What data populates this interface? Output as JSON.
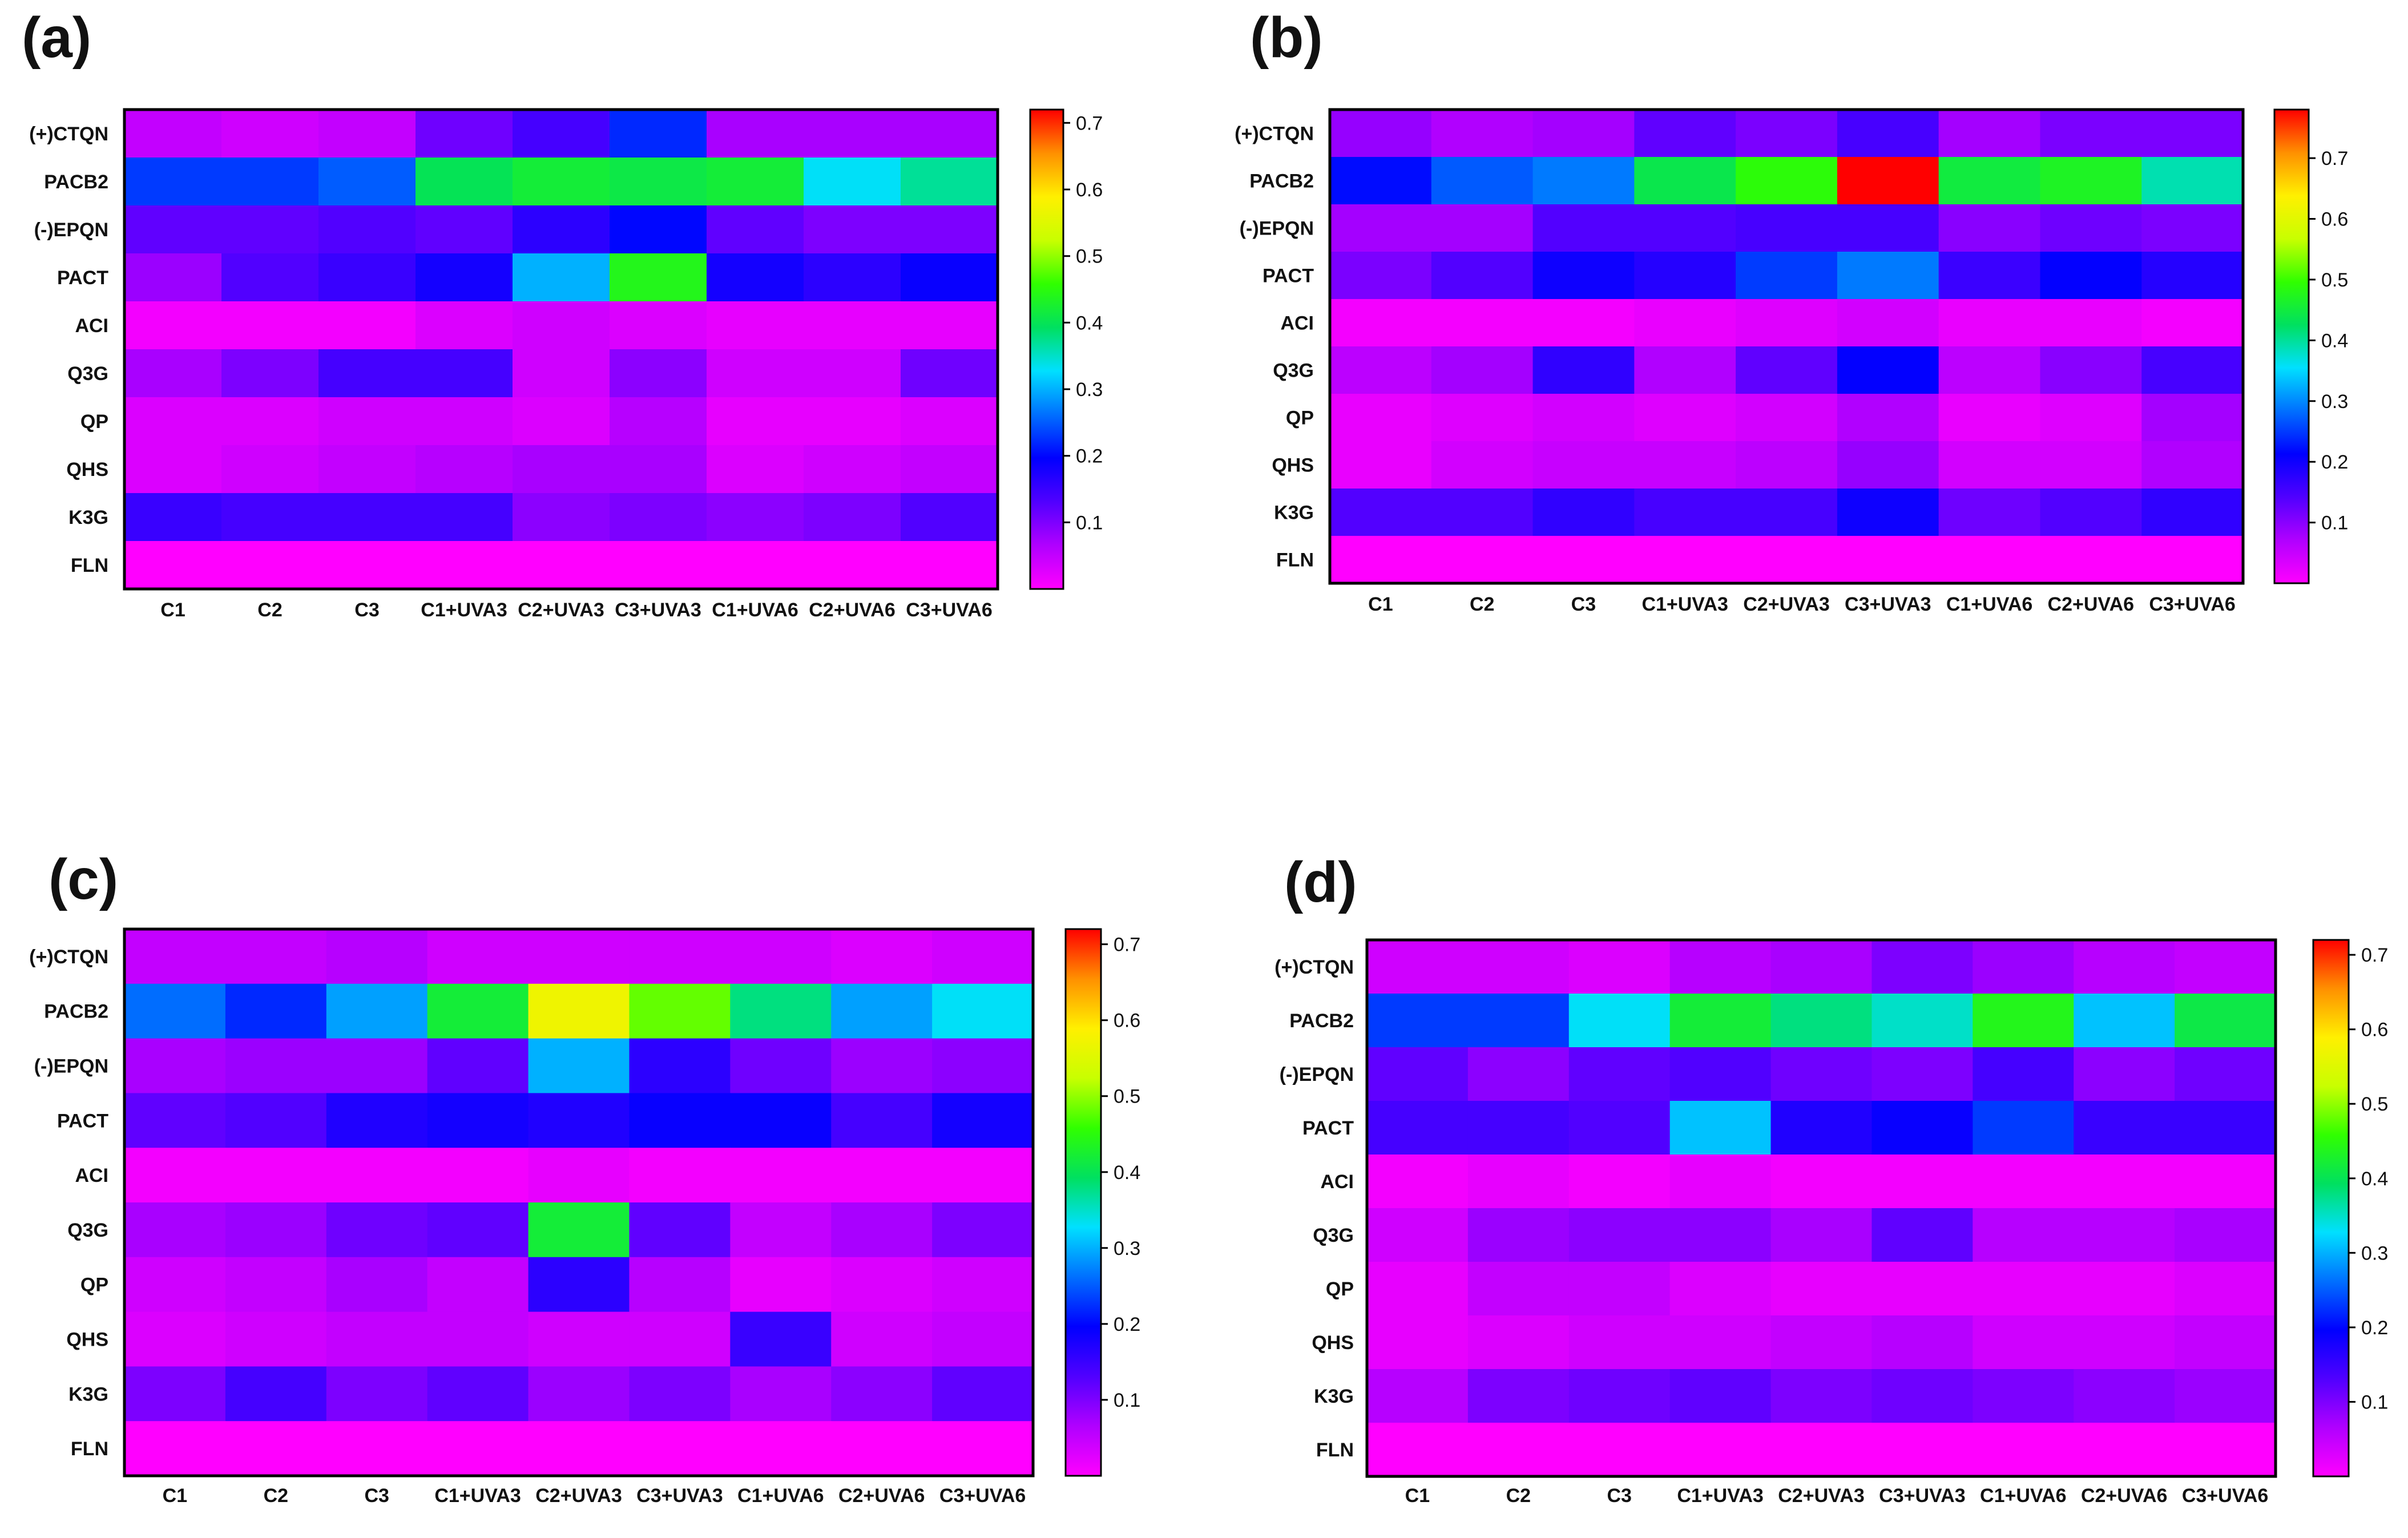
{
  "figure": {
    "colormap": [
      "#ff00ff",
      "#b000ff",
      "#5000ff",
      "#0000ff",
      "#0070ff",
      "#00e0ff",
      "#00e060",
      "#30ff00",
      "#c8ff00",
      "#fff000",
      "#ff9000",
      "#ff0000"
    ]
  },
  "chart_data": [
    {
      "type": "heatmap",
      "panel_label": "(a)",
      "rows": [
        "(+)CTQN",
        "PACB2",
        "(-)EPQN",
        "PACT",
        "ACI",
        "Q3G",
        "QP",
        "QHS",
        "K3G",
        "FLN"
      ],
      "columns": [
        "C1",
        "C2",
        "C3",
        "C1+UVA3",
        "C2+UVA3",
        "C3+UVA3",
        "C1+UVA6",
        "C2+UVA6",
        "C3+UVA6"
      ],
      "values": [
        [
          0.05,
          0.04,
          0.05,
          0.11,
          0.14,
          0.22,
          0.07,
          0.07,
          0.07
        ],
        [
          0.23,
          0.23,
          0.25,
          0.4,
          0.42,
          0.41,
          0.42,
          0.33,
          0.37
        ],
        [
          0.12,
          0.12,
          0.13,
          0.12,
          0.16,
          0.2,
          0.12,
          0.1,
          0.1
        ],
        [
          0.08,
          0.13,
          0.15,
          0.18,
          0.3,
          0.44,
          0.18,
          0.16,
          0.19
        ],
        [
          0.01,
          0.01,
          0.01,
          0.03,
          0.04,
          0.03,
          0.02,
          0.02,
          0.02
        ],
        [
          0.07,
          0.1,
          0.14,
          0.14,
          0.04,
          0.09,
          0.04,
          0.04,
          0.11
        ],
        [
          0.03,
          0.03,
          0.04,
          0.04,
          0.03,
          0.06,
          0.02,
          0.02,
          0.03
        ],
        [
          0.03,
          0.04,
          0.05,
          0.06,
          0.07,
          0.07,
          0.03,
          0.04,
          0.05
        ],
        [
          0.15,
          0.14,
          0.14,
          0.14,
          0.09,
          0.1,
          0.09,
          0.1,
          0.13
        ],
        [
          0.0,
          0.0,
          0.0,
          0.0,
          0.0,
          0.0,
          0.0,
          0.0,
          0.0
        ]
      ],
      "colorbar": {
        "min": 0,
        "max": 0.72,
        "ticks": [
          "0.7",
          "0.6",
          "0.5",
          "0.4",
          "0.3",
          "0.2",
          "0.1"
        ]
      }
    },
    {
      "type": "heatmap",
      "panel_label": "(b)",
      "rows": [
        "(+)CTQN",
        "PACB2",
        "(-)EPQN",
        "PACT",
        "ACI",
        "Q3G",
        "QP",
        "QHS",
        "K3G",
        "FLN"
      ],
      "columns": [
        "C1",
        "C2",
        "C3",
        "C1+UVA3",
        "C2+UVA3",
        "C3+UVA3",
        "C1+UVA6",
        "C2+UVA6",
        "C3+UVA6"
      ],
      "values": [
        [
          0.09,
          0.07,
          0.08,
          0.13,
          0.11,
          0.15,
          0.08,
          0.11,
          0.11
        ],
        [
          0.22,
          0.27,
          0.29,
          0.44,
          0.49,
          0.78,
          0.45,
          0.47,
          0.39
        ],
        [
          0.08,
          0.08,
          0.14,
          0.14,
          0.15,
          0.15,
          0.1,
          0.12,
          0.11
        ],
        [
          0.11,
          0.14,
          0.2,
          0.18,
          0.25,
          0.29,
          0.16,
          0.21,
          0.18
        ],
        [
          0.01,
          0.01,
          0.01,
          0.02,
          0.03,
          0.04,
          0.02,
          0.02,
          0.01
        ],
        [
          0.06,
          0.08,
          0.17,
          0.07,
          0.13,
          0.21,
          0.06,
          0.1,
          0.15
        ],
        [
          0.02,
          0.03,
          0.04,
          0.03,
          0.04,
          0.07,
          0.02,
          0.03,
          0.08
        ],
        [
          0.02,
          0.04,
          0.05,
          0.05,
          0.06,
          0.09,
          0.04,
          0.04,
          0.07
        ],
        [
          0.14,
          0.14,
          0.17,
          0.15,
          0.15,
          0.2,
          0.12,
          0.14,
          0.17
        ],
        [
          0.0,
          0.0,
          0.0,
          0.0,
          0.0,
          0.0,
          0.0,
          0.0,
          0.0
        ]
      ],
      "colorbar": {
        "min": 0,
        "max": 0.78,
        "ticks": [
          "0.7",
          "0.6",
          "0.5",
          "0.4",
          "0.3",
          "0.2",
          "0.1"
        ]
      }
    },
    {
      "type": "heatmap",
      "panel_label": "(c)",
      "rows": [
        "(+)CTQN",
        "PACB2",
        "(-)EPQN",
        "PACT",
        "ACI",
        "Q3G",
        "QP",
        "QHS",
        "K3G",
        "FLN"
      ],
      "columns": [
        "C1",
        "C2",
        "C3",
        "C1+UVA3",
        "C2+UVA3",
        "C3+UVA3",
        "C1+UVA6",
        "C2+UVA6",
        "C3+UVA6"
      ],
      "values": [
        [
          0.05,
          0.05,
          0.06,
          0.04,
          0.04,
          0.04,
          0.04,
          0.03,
          0.04
        ],
        [
          0.26,
          0.22,
          0.29,
          0.42,
          0.57,
          0.48,
          0.38,
          0.29,
          0.33
        ],
        [
          0.07,
          0.08,
          0.08,
          0.12,
          0.3,
          0.16,
          0.11,
          0.08,
          0.09
        ],
        [
          0.12,
          0.13,
          0.17,
          0.18,
          0.17,
          0.19,
          0.19,
          0.14,
          0.18
        ],
        [
          0.01,
          0.01,
          0.01,
          0.01,
          0.02,
          0.01,
          0.01,
          0.01,
          0.01
        ],
        [
          0.07,
          0.08,
          0.11,
          0.12,
          0.42,
          0.12,
          0.05,
          0.07,
          0.1
        ],
        [
          0.04,
          0.05,
          0.07,
          0.05,
          0.16,
          0.06,
          0.02,
          0.03,
          0.04
        ],
        [
          0.03,
          0.04,
          0.05,
          0.05,
          0.04,
          0.04,
          0.15,
          0.04,
          0.05
        ],
        [
          0.1,
          0.14,
          0.1,
          0.12,
          0.08,
          0.1,
          0.07,
          0.09,
          0.12
        ],
        [
          0.0,
          0.0,
          0.0,
          0.0,
          0.0,
          0.0,
          0.0,
          0.0,
          0.0
        ]
      ],
      "colorbar": {
        "min": 0,
        "max": 0.72,
        "ticks": [
          "0.7",
          "0.6",
          "0.5",
          "0.4",
          "0.3",
          "0.2",
          "0.1"
        ]
      }
    },
    {
      "type": "heatmap",
      "panel_label": "(d)",
      "rows": [
        "(+)CTQN",
        "PACB2",
        "(-)EPQN",
        "PACT",
        "ACI",
        "Q3G",
        "QP",
        "QHS",
        "K3G",
        "FLN"
      ],
      "columns": [
        "C1",
        "C2",
        "C3",
        "C1+UVA3",
        "C2+UVA3",
        "C3+UVA3",
        "C1+UVA6",
        "C2+UVA6",
        "C3+UVA6"
      ],
      "values": [
        [
          0.04,
          0.04,
          0.03,
          0.06,
          0.07,
          0.1,
          0.08,
          0.06,
          0.05
        ],
        [
          0.23,
          0.23,
          0.33,
          0.42,
          0.38,
          0.35,
          0.44,
          0.31,
          0.41
        ],
        [
          0.12,
          0.09,
          0.12,
          0.13,
          0.11,
          0.1,
          0.14,
          0.09,
          0.11
        ],
        [
          0.14,
          0.14,
          0.13,
          0.31,
          0.17,
          0.19,
          0.23,
          0.15,
          0.15
        ],
        [
          0.01,
          0.02,
          0.01,
          0.02,
          0.01,
          0.01,
          0.01,
          0.01,
          0.01
        ],
        [
          0.04,
          0.08,
          0.09,
          0.09,
          0.07,
          0.12,
          0.06,
          0.06,
          0.07
        ],
        [
          0.02,
          0.05,
          0.05,
          0.03,
          0.02,
          0.02,
          0.02,
          0.02,
          0.03
        ],
        [
          0.02,
          0.03,
          0.04,
          0.04,
          0.05,
          0.06,
          0.04,
          0.04,
          0.05
        ],
        [
          0.06,
          0.1,
          0.11,
          0.12,
          0.1,
          0.11,
          0.1,
          0.09,
          0.08
        ],
        [
          0.0,
          0.0,
          0.0,
          0.0,
          0.0,
          0.0,
          0.0,
          0.0,
          0.0
        ]
      ],
      "colorbar": {
        "min": 0,
        "max": 0.72,
        "ticks": [
          "0.7",
          "0.6",
          "0.5",
          "0.4",
          "0.3",
          "0.2",
          "0.1"
        ]
      }
    }
  ]
}
